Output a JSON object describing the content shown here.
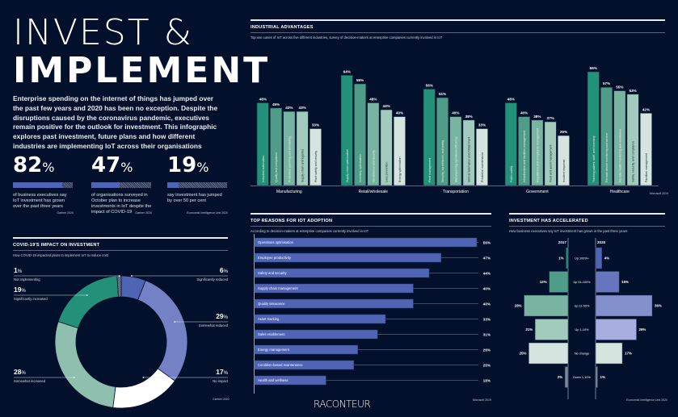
{
  "title": {
    "line1": "INVEST &",
    "line2": "IMPLEMENT"
  },
  "intro": "Enterprise spending on the internet of things has jumped over the past few years and 2020 has been no exception. Despite the disruptions caused by the coronavirus pandemic, executives remain positive for the outlook for investment. This infographic explores past investment, future plans and how different industries are implementing IoT across their organisations",
  "stats": [
    {
      "value": "82",
      "unit": "%",
      "fraction": 0.82,
      "desc": "of business executives say IoT investment has grown over the past three years",
      "source": "Gartner 2020"
    },
    {
      "value": "47",
      "unit": "%",
      "fraction": 0.47,
      "desc": "of organisations surveyed in October plan to increase investments in IoT despite the impact of COVID-19",
      "source": "Gartner 2020"
    },
    {
      "value": "19",
      "unit": "%",
      "fraction": 0.19,
      "desc": "say investment has jumped by over 50 per cent",
      "source": "Economist Intelligence Unit 2020"
    }
  ],
  "brand": "RACONTEUR",
  "colors": {
    "background": "#02102b",
    "blue": "#4f64b5",
    "green_dark": "#23917a",
    "white": "#ffffff"
  },
  "chart_data": [
    {
      "id": "covid-impact",
      "type": "pie",
      "title": "COVID-19'S IMPACT ON INVESTMENT",
      "subtitle": "How COVID-19 impacted plans to implement IoT to reduce cost",
      "source": "Gartner 2020",
      "slices": [
        {
          "label": "Significantly reduced",
          "value": 6,
          "display": "6",
          "color": "#4f64b5"
        },
        {
          "label": "Somewhat reduced",
          "value": 29,
          "display": "29",
          "color": "#7481c4"
        },
        {
          "label": "No impact",
          "value": 17,
          "display": "17",
          "color": "#ffffff"
        },
        {
          "label": "Somewhat increased",
          "value": 28,
          "display": "28",
          "color": "#8fbfae"
        },
        {
          "label": "Significantly increased",
          "value": 19,
          "display": "19",
          "color": "#23917a"
        },
        {
          "label": "Not implementing",
          "value": 1,
          "display": "1",
          "color": "#8a93a8"
        }
      ]
    },
    {
      "id": "industrial-advantages",
      "type": "bar",
      "title": "INDUSTRIAL ADVANTAGES",
      "subtitle": "Top use cases of IoT across five different industries, survey of decision-makers at enterprise companies currently involved in IoT",
      "source": "Microsoft 2019",
      "ylim": [
        0,
        70
      ],
      "groups": [
        {
          "name": "Manufacturing",
          "bars": [
            {
              "label": "Industrial automation",
              "value": 48
            },
            {
              "label": "Quality and compliance",
              "value": 45
            },
            {
              "label": "Production planning and scheduling",
              "value": 43
            },
            {
              "label": "Supply chain and logistics",
              "value": 43
            },
            {
              "label": "Plant safety and security",
              "value": 33
            }
          ]
        },
        {
          "name": "Retail/wholesale",
          "bars": [
            {
              "label": "Supply chain optimisation",
              "value": 64
            },
            {
              "label": "Inventory optimisation",
              "value": 59
            },
            {
              "label": "Surveillance and security",
              "value": 48
            },
            {
              "label": "Loss prevention",
              "value": 44
            },
            {
              "label": "Energy optimisation",
              "value": 40
            }
          ]
        },
        {
          "name": "Transportation",
          "bars": [
            {
              "label": "Fleet management",
              "value": 56
            },
            {
              "label": "Security, surveillance, and safety",
              "value": 51
            },
            {
              "label": "Manufacturing operations efficiency",
              "value": 40
            },
            {
              "label": "Vehicle telematics and infotainment",
              "value": 38
            },
            {
              "label": "Predictive maintenance",
              "value": 33
            }
          ]
        },
        {
          "name": "Government",
          "bars": [
            {
              "label": "Public safety",
              "value": 48
            },
            {
              "label": "Infrastructure and facilities management",
              "value": 40
            },
            {
              "label": "Regulations and compliance management",
              "value": 38
            },
            {
              "label": "Fleet and asset management",
              "value": 37
            },
            {
              "label": "Incident response",
              "value": 29
            }
          ]
        },
        {
          "name": "Healthcare",
          "bars": [
            {
              "label": "Tracking patient, staff, and inventory",
              "value": 66
            },
            {
              "label": "Remote device monitoring and service",
              "value": 57
            },
            {
              "label": "Remote health monitoring and assistance",
              "value": 55
            },
            {
              "label": "Safety, security, and compliance",
              "value": 53
            },
            {
              "label": "Facilities management",
              "value": 42
            }
          ]
        }
      ],
      "bar_colors": [
        "#23917a",
        "#4f9d88",
        "#79b4a2",
        "#a3cbbd",
        "#d5e4de"
      ]
    },
    {
      "id": "top-reasons",
      "type": "bar",
      "orientation": "horizontal",
      "title": "TOP REASONS FOR IOT ADOPTION",
      "subtitle": "According to decision-makers at enterprise companies currently involved in IoT",
      "source": "Microsoft 2019",
      "xlim": [
        0,
        60
      ],
      "categories": [
        "Operations optimisation",
        "Employee productivity",
        "Safety and security",
        "Supply chain management",
        "Quality assurance",
        "Asset tracking",
        "Sales enablement",
        "Energy management",
        "Condition-based maintenance",
        "Health and wellness"
      ],
      "values": [
        56,
        47,
        44,
        40,
        40,
        33,
        31,
        26,
        25,
        18
      ]
    },
    {
      "id": "investment-accelerated",
      "type": "bar",
      "orientation": "butterfly",
      "title": "INVESTMENT HAS ACCELERATED",
      "subtitle": "How business executives say IoT investment has grown in the past three years",
      "source": "Economist Intelligence Unit 2020",
      "categories": [
        "Up 100%+",
        "Up 51-100%",
        "Up 11-50%",
        "Up 1-10%",
        "No change",
        "Down 1-10%"
      ],
      "series": [
        {
          "name": "2017",
          "values": [
            1,
            12,
            28,
            21,
            25,
            2
          ],
          "colors": [
            "#23917a",
            "#4f9d88",
            "#79b4a2",
            "#a3cbbd",
            "#d5e4de",
            "#7d869b"
          ]
        },
        {
          "name": "2020",
          "values": [
            4,
            15,
            36,
            26,
            17,
            1
          ],
          "colors": [
            "#4f64b5",
            "#6675bd",
            "#8390cc",
            "#a8aee0",
            "#d5e4de",
            "#7d869b"
          ]
        }
      ],
      "xlim": [
        0,
        36
      ]
    }
  ]
}
